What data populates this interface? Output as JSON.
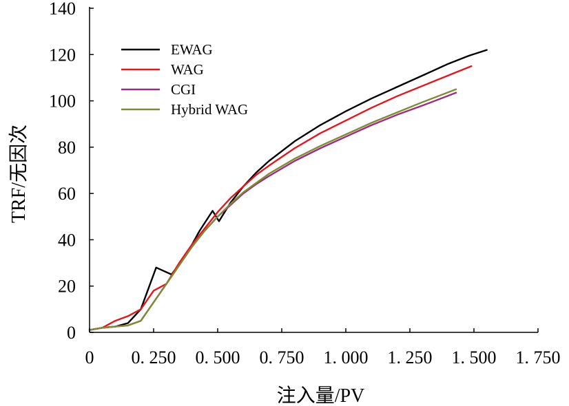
{
  "chart_data": {
    "type": "line",
    "title": "",
    "xlabel": "注入量/PV",
    "ylabel": "TRF/无因次",
    "xlim": [
      0,
      1.75
    ],
    "ylim": [
      0,
      140
    ],
    "xticks": [
      0,
      0.25,
      0.5,
      0.75,
      1.0,
      1.25,
      1.5,
      1.75
    ],
    "xtick_labels": [
      "0",
      "0. 250",
      "0. 500",
      "0. 750",
      "1. 000",
      "1. 250",
      "1. 500",
      "1. 750"
    ],
    "yticks": [
      0,
      20,
      40,
      60,
      80,
      100,
      120,
      140
    ],
    "ytick_labels": [
      "0",
      "20",
      "40",
      "60",
      "80",
      "100",
      "120",
      "140"
    ],
    "grid": false,
    "legend_position": "top-left",
    "series": [
      {
        "name": "EWAG",
        "color": "#000000",
        "x": [
          0,
          0.05,
          0.1,
          0.15,
          0.2,
          0.26,
          0.32,
          0.38,
          0.43,
          0.48,
          0.505,
          0.55,
          0.6,
          0.65,
          0.7,
          0.8,
          0.9,
          1.0,
          1.1,
          1.2,
          1.3,
          1.4,
          1.48,
          1.55
        ],
        "y": [
          1,
          2,
          2.5,
          4,
          10,
          28,
          25,
          34,
          44,
          52.5,
          48,
          56,
          63,
          69,
          74,
          82.5,
          89.5,
          95.5,
          101,
          106,
          111,
          116,
          119.5,
          122
        ]
      },
      {
        "name": "WAG",
        "color": "#e8141c",
        "x": [
          0,
          0.05,
          0.1,
          0.15,
          0.2,
          0.25,
          0.3,
          0.35,
          0.4,
          0.45,
          0.5,
          0.55,
          0.6,
          0.65,
          0.7,
          0.8,
          0.9,
          1.0,
          1.1,
          1.2,
          1.3,
          1.4,
          1.49
        ],
        "y": [
          1,
          2,
          5,
          7,
          10,
          18,
          21,
          30,
          38,
          45,
          52,
          58,
          63,
          68,
          72,
          79.5,
          86,
          91.5,
          97,
          102,
          106.5,
          111,
          115
        ]
      },
      {
        "name": "CGI",
        "color": "#9b2d7c",
        "x": [
          0,
          0.05,
          0.1,
          0.15,
          0.2,
          0.25,
          0.3,
          0.35,
          0.4,
          0.45,
          0.5,
          0.55,
          0.6,
          0.65,
          0.7,
          0.8,
          0.9,
          1.0,
          1.1,
          1.2,
          1.3,
          1.43
        ],
        "y": [
          1,
          2,
          2.5,
          3,
          5,
          13,
          21,
          29,
          37,
          44,
          50,
          55,
          60,
          64,
          67.5,
          74,
          79.5,
          84.5,
          89.5,
          94,
          98,
          103.5
        ]
      },
      {
        "name": "Hybrid  WAG",
        "color": "#7f8a36",
        "x": [
          0,
          0.05,
          0.1,
          0.15,
          0.2,
          0.25,
          0.3,
          0.35,
          0.4,
          0.45,
          0.5,
          0.55,
          0.6,
          0.65,
          0.7,
          0.8,
          0.9,
          1.0,
          1.1,
          1.2,
          1.3,
          1.43
        ],
        "y": [
          1,
          2,
          2.5,
          3,
          5,
          13,
          21,
          29,
          37,
          44,
          50,
          55.5,
          60.5,
          64.5,
          68.5,
          75,
          80.5,
          85.5,
          90.5,
          95,
          99.5,
          105
        ]
      }
    ]
  }
}
